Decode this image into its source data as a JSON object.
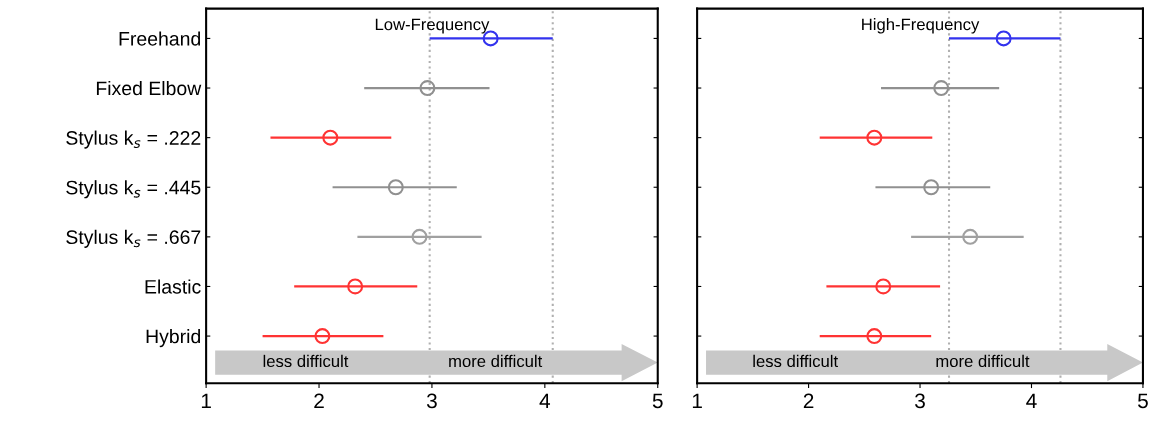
{
  "chart_data": [
    {
      "type": "scatter",
      "orientation": "horizontal",
      "title": "Low-Frequency",
      "categories": [
        "Freehand",
        "Fixed Elbow",
        "Stylus k$_{s}$ = .222",
        "Stylus k$_{s}$ = .445",
        "Stylus k$_{s}$ = .667",
        "Elastic",
        "Hybrid"
      ],
      "values": [
        3.52,
        2.96,
        2.1,
        2.68,
        2.89,
        2.32,
        2.03
      ],
      "errors": [
        [
          2.98,
          4.07
        ],
        [
          2.4,
          3.51
        ],
        [
          1.57,
          2.64
        ],
        [
          2.12,
          3.22
        ],
        [
          2.34,
          3.44
        ],
        [
          1.78,
          2.87
        ],
        [
          1.5,
          2.57
        ]
      ],
      "colors": [
        "#3333ee",
        "#909090",
        "#ff3333",
        "#909090",
        "#a0a0a0",
        "#ff3333",
        "#ff3333"
      ],
      "xlim": [
        1,
        5
      ],
      "xticks": [
        1,
        2,
        3,
        4,
        5
      ],
      "marker": "circle",
      "legend": false,
      "ref_lines": [
        {
          "axis": "x",
          "value": 2.98,
          "color": "#b0b0b0",
          "line_style": "dotted"
        },
        {
          "axis": "x",
          "value": 4.07,
          "color": "#b0b0b0",
          "line_style": "dotted"
        }
      ],
      "annotations": [
        "less difficult",
        "more difficult"
      ]
    },
    {
      "type": "scatter",
      "orientation": "horizontal",
      "title": "High-Frequency",
      "categories": [
        null,
        null,
        null,
        null,
        null,
        null,
        null
      ],
      "values": [
        3.75,
        3.19,
        2.59,
        3.1,
        3.45,
        2.67,
        2.59
      ],
      "errors": [
        [
          3.26,
          4.26
        ],
        [
          2.65,
          3.71
        ],
        [
          2.1,
          3.11
        ],
        [
          2.6,
          3.63
        ],
        [
          2.92,
          3.93
        ],
        [
          2.16,
          3.18
        ],
        [
          2.1,
          3.1
        ]
      ],
      "colors": [
        "#3333ee",
        "#909090",
        "#ff3333",
        "#909090",
        "#a0a0a0",
        "#ff3333",
        "#ff3333"
      ],
      "xlim": [
        1,
        5
      ],
      "xticks": [
        1,
        2,
        3,
        4,
        5
      ],
      "marker": "circle",
      "legend": false,
      "tick_labels": "x",
      "ref_lines": [
        {
          "axis": "x",
          "value": 3.26,
          "color": "#b0b0b0",
          "line_style": "dotted"
        },
        {
          "axis": "x",
          "value": 4.26,
          "color": "#b0b0b0",
          "line_style": "dotted"
        }
      ],
      "annotations": [
        "less difficult",
        "more difficult"
      ]
    }
  ]
}
